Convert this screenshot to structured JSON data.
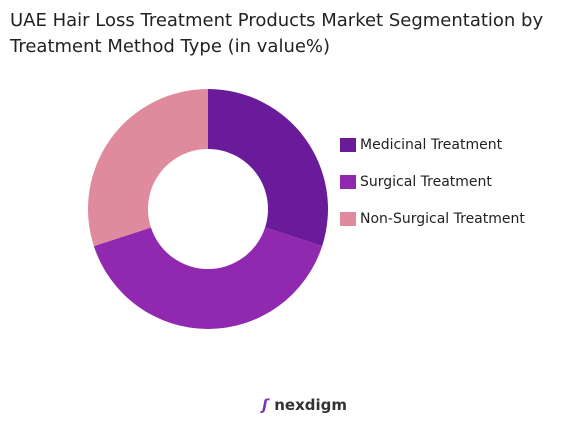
{
  "chart_data": {
    "type": "donut",
    "title": "UAE Hair Loss Treatment Products Market Segmentation by Treatment Method Type (in value%)",
    "categories": [
      "Medicinal Treatment",
      "Surgical Treatment",
      "Non-Surgical Treatment"
    ],
    "values": [
      30,
      40,
      30
    ],
    "colors": [
      "#6a1b9a",
      "#9128b0",
      "#e08a9e"
    ],
    "legend": "right"
  },
  "logo": "nexdigm"
}
